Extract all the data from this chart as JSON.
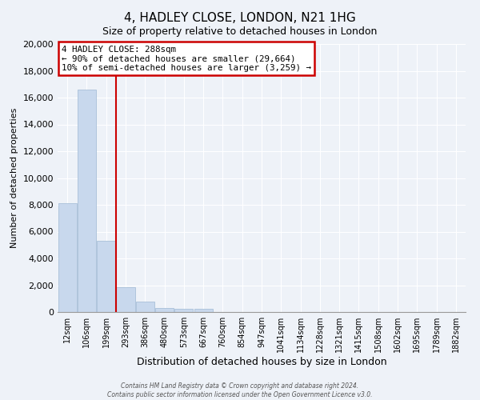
{
  "title": "4, HADLEY CLOSE, LONDON, N21 1HG",
  "subtitle": "Size of property relative to detached houses in London",
  "xlabel": "Distribution of detached houses by size in London",
  "ylabel": "Number of detached properties",
  "bar_color": "#c8d8ed",
  "bar_edge_color": "#a8c0d8",
  "categories": [
    "12sqm",
    "106sqm",
    "199sqm",
    "293sqm",
    "386sqm",
    "480sqm",
    "573sqm",
    "667sqm",
    "760sqm",
    "854sqm",
    "947sqm",
    "1041sqm",
    "1134sqm",
    "1228sqm",
    "1321sqm",
    "1415sqm",
    "1508sqm",
    "1602sqm",
    "1695sqm",
    "1789sqm",
    "1882sqm"
  ],
  "values": [
    8100,
    16600,
    5300,
    1850,
    800,
    300,
    250,
    250,
    0,
    0,
    0,
    0,
    0,
    0,
    0,
    0,
    0,
    0,
    0,
    0,
    0
  ],
  "ylim": [
    0,
    20000
  ],
  "yticks": [
    0,
    2000,
    4000,
    6000,
    8000,
    10000,
    12000,
    14000,
    16000,
    18000,
    20000
  ],
  "marker_bar_index": 3,
  "annotation_line1": "4 HADLEY CLOSE: 288sqm",
  "annotation_line2": "← 90% of detached houses are smaller (29,664)",
  "annotation_line3": "10% of semi-detached houses are larger (3,259) →",
  "annotation_box_color": "#ffffff",
  "annotation_box_edge_color": "#cc0000",
  "marker_line_color": "#cc0000",
  "footer_line1": "Contains HM Land Registry data © Crown copyright and database right 2024.",
  "footer_line2": "Contains public sector information licensed under the Open Government Licence v3.0.",
  "background_color": "#eef2f8",
  "plot_background_color": "#eef2f8",
  "grid_color": "#ffffff",
  "title_fontsize": 11,
  "subtitle_fontsize": 9,
  "ylabel_fontsize": 8,
  "xlabel_fontsize": 9
}
